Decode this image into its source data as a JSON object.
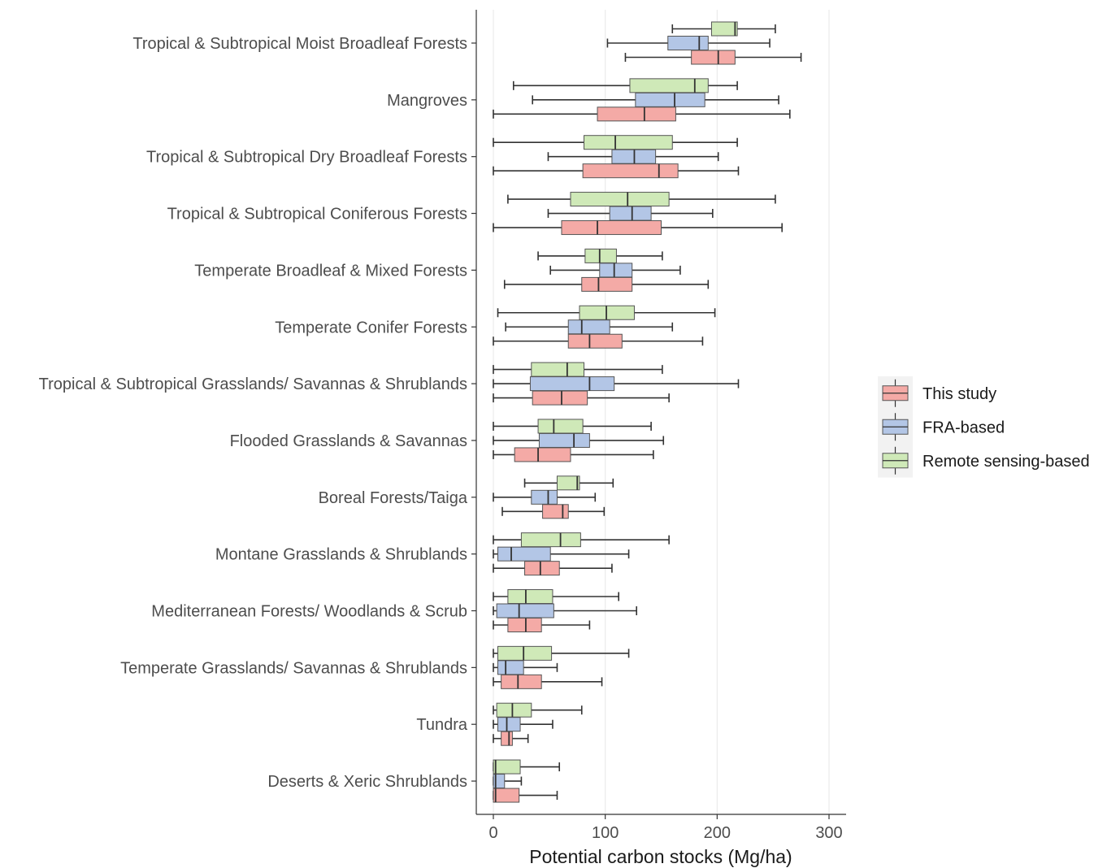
{
  "chart_data": {
    "type": "boxplot",
    "orientation": "horizontal",
    "xlabel": "Potential carbon stocks (Mg/ha)",
    "ylabel": "",
    "xlim": [
      -15,
      315
    ],
    "xticks": [
      0,
      100,
      200,
      300
    ],
    "grid": "vertical major",
    "legend_position": "right",
    "series": [
      {
        "name": "This study",
        "color": "#f4aaa6"
      },
      {
        "name": "FRA-based",
        "color": "#b3c6e6"
      },
      {
        "name": "Remote sensing-based",
        "color": "#cfe9b8"
      }
    ],
    "categories": [
      "Tropical & Subtropical Moist Broadleaf Forests",
      "Mangroves",
      "Tropical & Subtropical Dry Broadleaf Forests",
      "Tropical & Subtropical Coniferous Forests",
      "Temperate Broadleaf & Mixed Forests",
      "Temperate Conifer Forests",
      "Tropical & Subtropical Grasslands/ Savannas & Shrublands",
      "Flooded Grasslands & Savannas",
      "Boreal Forests/Taiga",
      "Montane Grasslands & Shrublands",
      "Mediterranean Forests/ Woodlands & Scrub",
      "Temperate Grasslands/ Savannas & Shrublands",
      "Tundra",
      "Deserts & Xeric Shrublands"
    ],
    "boxes": [
      [
        [
          118,
          177,
          201,
          216,
          275
        ],
        [
          102,
          156,
          184,
          192,
          247
        ],
        [
          160,
          195,
          216,
          218,
          252
        ]
      ],
      [
        [
          0,
          93,
          135,
          163,
          265
        ],
        [
          35,
          127,
          162,
          189,
          255
        ],
        [
          18,
          122,
          180,
          192,
          218
        ]
      ],
      [
        [
          0,
          80,
          148,
          165,
          219
        ],
        [
          49,
          106,
          126,
          145,
          201
        ],
        [
          0,
          81,
          109,
          160,
          218
        ]
      ],
      [
        [
          0,
          61,
          93,
          150,
          258
        ],
        [
          49,
          104,
          124,
          141,
          196
        ],
        [
          13,
          69,
          120,
          157,
          252
        ]
      ],
      [
        [
          10,
          79,
          94,
          124,
          192
        ],
        [
          51,
          95,
          108,
          124,
          167
        ],
        [
          40,
          82,
          95,
          110,
          151
        ]
      ],
      [
        [
          0,
          67,
          86,
          115,
          187
        ],
        [
          11,
          67,
          79,
          104,
          160
        ],
        [
          4,
          77,
          101,
          126,
          198
        ]
      ],
      [
        [
          0,
          35,
          61,
          84,
          157
        ],
        [
          0,
          33,
          86,
          108,
          219
        ],
        [
          0,
          34,
          66,
          81,
          151
        ]
      ],
      [
        [
          0,
          19,
          40,
          69,
          143
        ],
        [
          0,
          41,
          72,
          86,
          152
        ],
        [
          0,
          40,
          54,
          80,
          141
        ]
      ],
      [
        [
          8,
          44,
          62,
          67,
          99
        ],
        [
          0,
          34,
          49,
          57,
          91
        ],
        [
          28,
          57,
          75,
          77,
          107
        ]
      ],
      [
        [
          0,
          28,
          42,
          59,
          106
        ],
        [
          0,
          4,
          16,
          51,
          121
        ],
        [
          0,
          25,
          60,
          78,
          157
        ]
      ],
      [
        [
          0,
          13,
          29,
          43,
          86
        ],
        [
          0,
          3,
          23,
          54,
          128
        ],
        [
          0,
          13,
          29,
          53,
          112
        ]
      ],
      [
        [
          0,
          7,
          22,
          43,
          97
        ],
        [
          0,
          4,
          11,
          27,
          57
        ],
        [
          0,
          4,
          27,
          52,
          121
        ]
      ],
      [
        [
          0,
          7,
          14,
          17,
          31
        ],
        [
          0,
          4,
          12,
          24,
          53
        ],
        [
          0,
          3,
          17,
          34,
          79
        ]
      ],
      [
        [
          0,
          0,
          2,
          23,
          57
        ],
        [
          0,
          0,
          2,
          10,
          25
        ],
        [
          0,
          0,
          2,
          24,
          59
        ]
      ]
    ]
  }
}
